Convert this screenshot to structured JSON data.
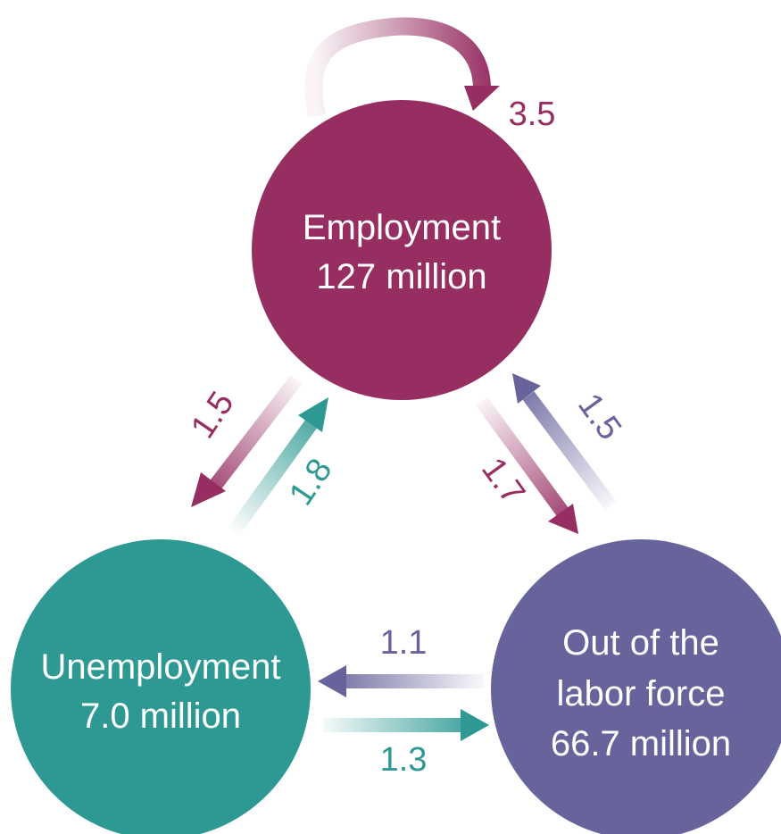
{
  "nodes": {
    "employment": {
      "title": "Employment",
      "value": "127 million",
      "color": "#962e62"
    },
    "unemployment": {
      "title": "Unemployment",
      "value": "7.0 million",
      "color": "#2e9993"
    },
    "out_of_labor_force": {
      "title_line1": "Out of the",
      "title_line2": "labor force",
      "value": "66.7 million",
      "color": "#67649c"
    }
  },
  "flows": {
    "employment_to_employment": "3.5",
    "employment_to_unemployment": "1.5",
    "unemployment_to_employment": "1.8",
    "employment_to_out": "1.7",
    "out_to_employment": "1.5",
    "out_to_unemployment": "1.1",
    "unemployment_to_out": "1.3"
  }
}
